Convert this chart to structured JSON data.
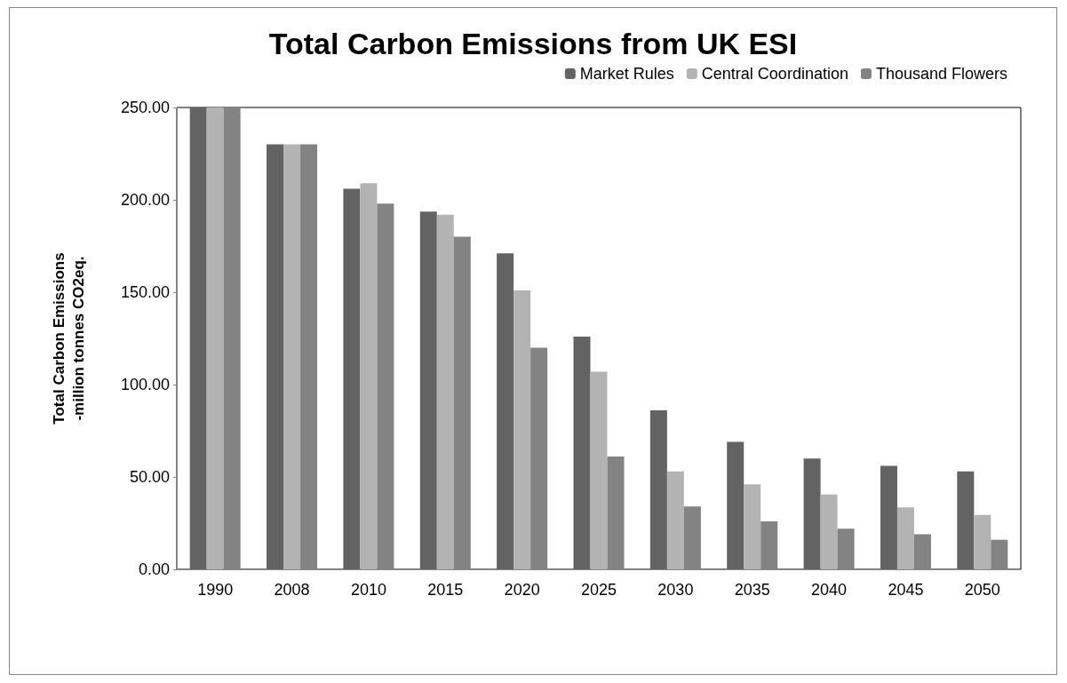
{
  "chart_data": {
    "type": "bar",
    "title": "Total Carbon Emissions from UK ESI",
    "ylabel": "Total Carbon Emissions\n-million tonnes CO2eq.",
    "categories": [
      "1990",
      "2008",
      "2010",
      "2015",
      "2020",
      "2025",
      "2030",
      "2035",
      "2040",
      "2045",
      "2050"
    ],
    "series": [
      {
        "name": "Market Rules",
        "color": "#636363",
        "values": [
          250,
          230,
          206,
          193.6,
          171,
          126,
          86,
          69,
          60,
          56,
          53
        ]
      },
      {
        "name": "Central Coordination",
        "color": "#b3b3b3",
        "values": [
          250,
          230,
          209,
          192,
          151,
          107,
          53,
          46,
          40.5,
          33.5,
          29.5
        ]
      },
      {
        "name": "Thousand Flowers",
        "color": "#838383",
        "values": [
          250,
          230,
          198,
          180,
          120,
          61,
          34,
          26,
          22,
          19,
          16
        ]
      }
    ],
    "ylim": [
      0,
      250
    ],
    "yticks": [
      {
        "value": 0,
        "label": "0.00"
      },
      {
        "value": 50,
        "label": "50.00"
      },
      {
        "value": 100,
        "label": "100.00"
      },
      {
        "value": 150,
        "label": "150.00"
      },
      {
        "value": 200,
        "label": "200.00"
      },
      {
        "value": 250,
        "label": "250.00"
      }
    ],
    "grid": false,
    "legend": "top right"
  }
}
